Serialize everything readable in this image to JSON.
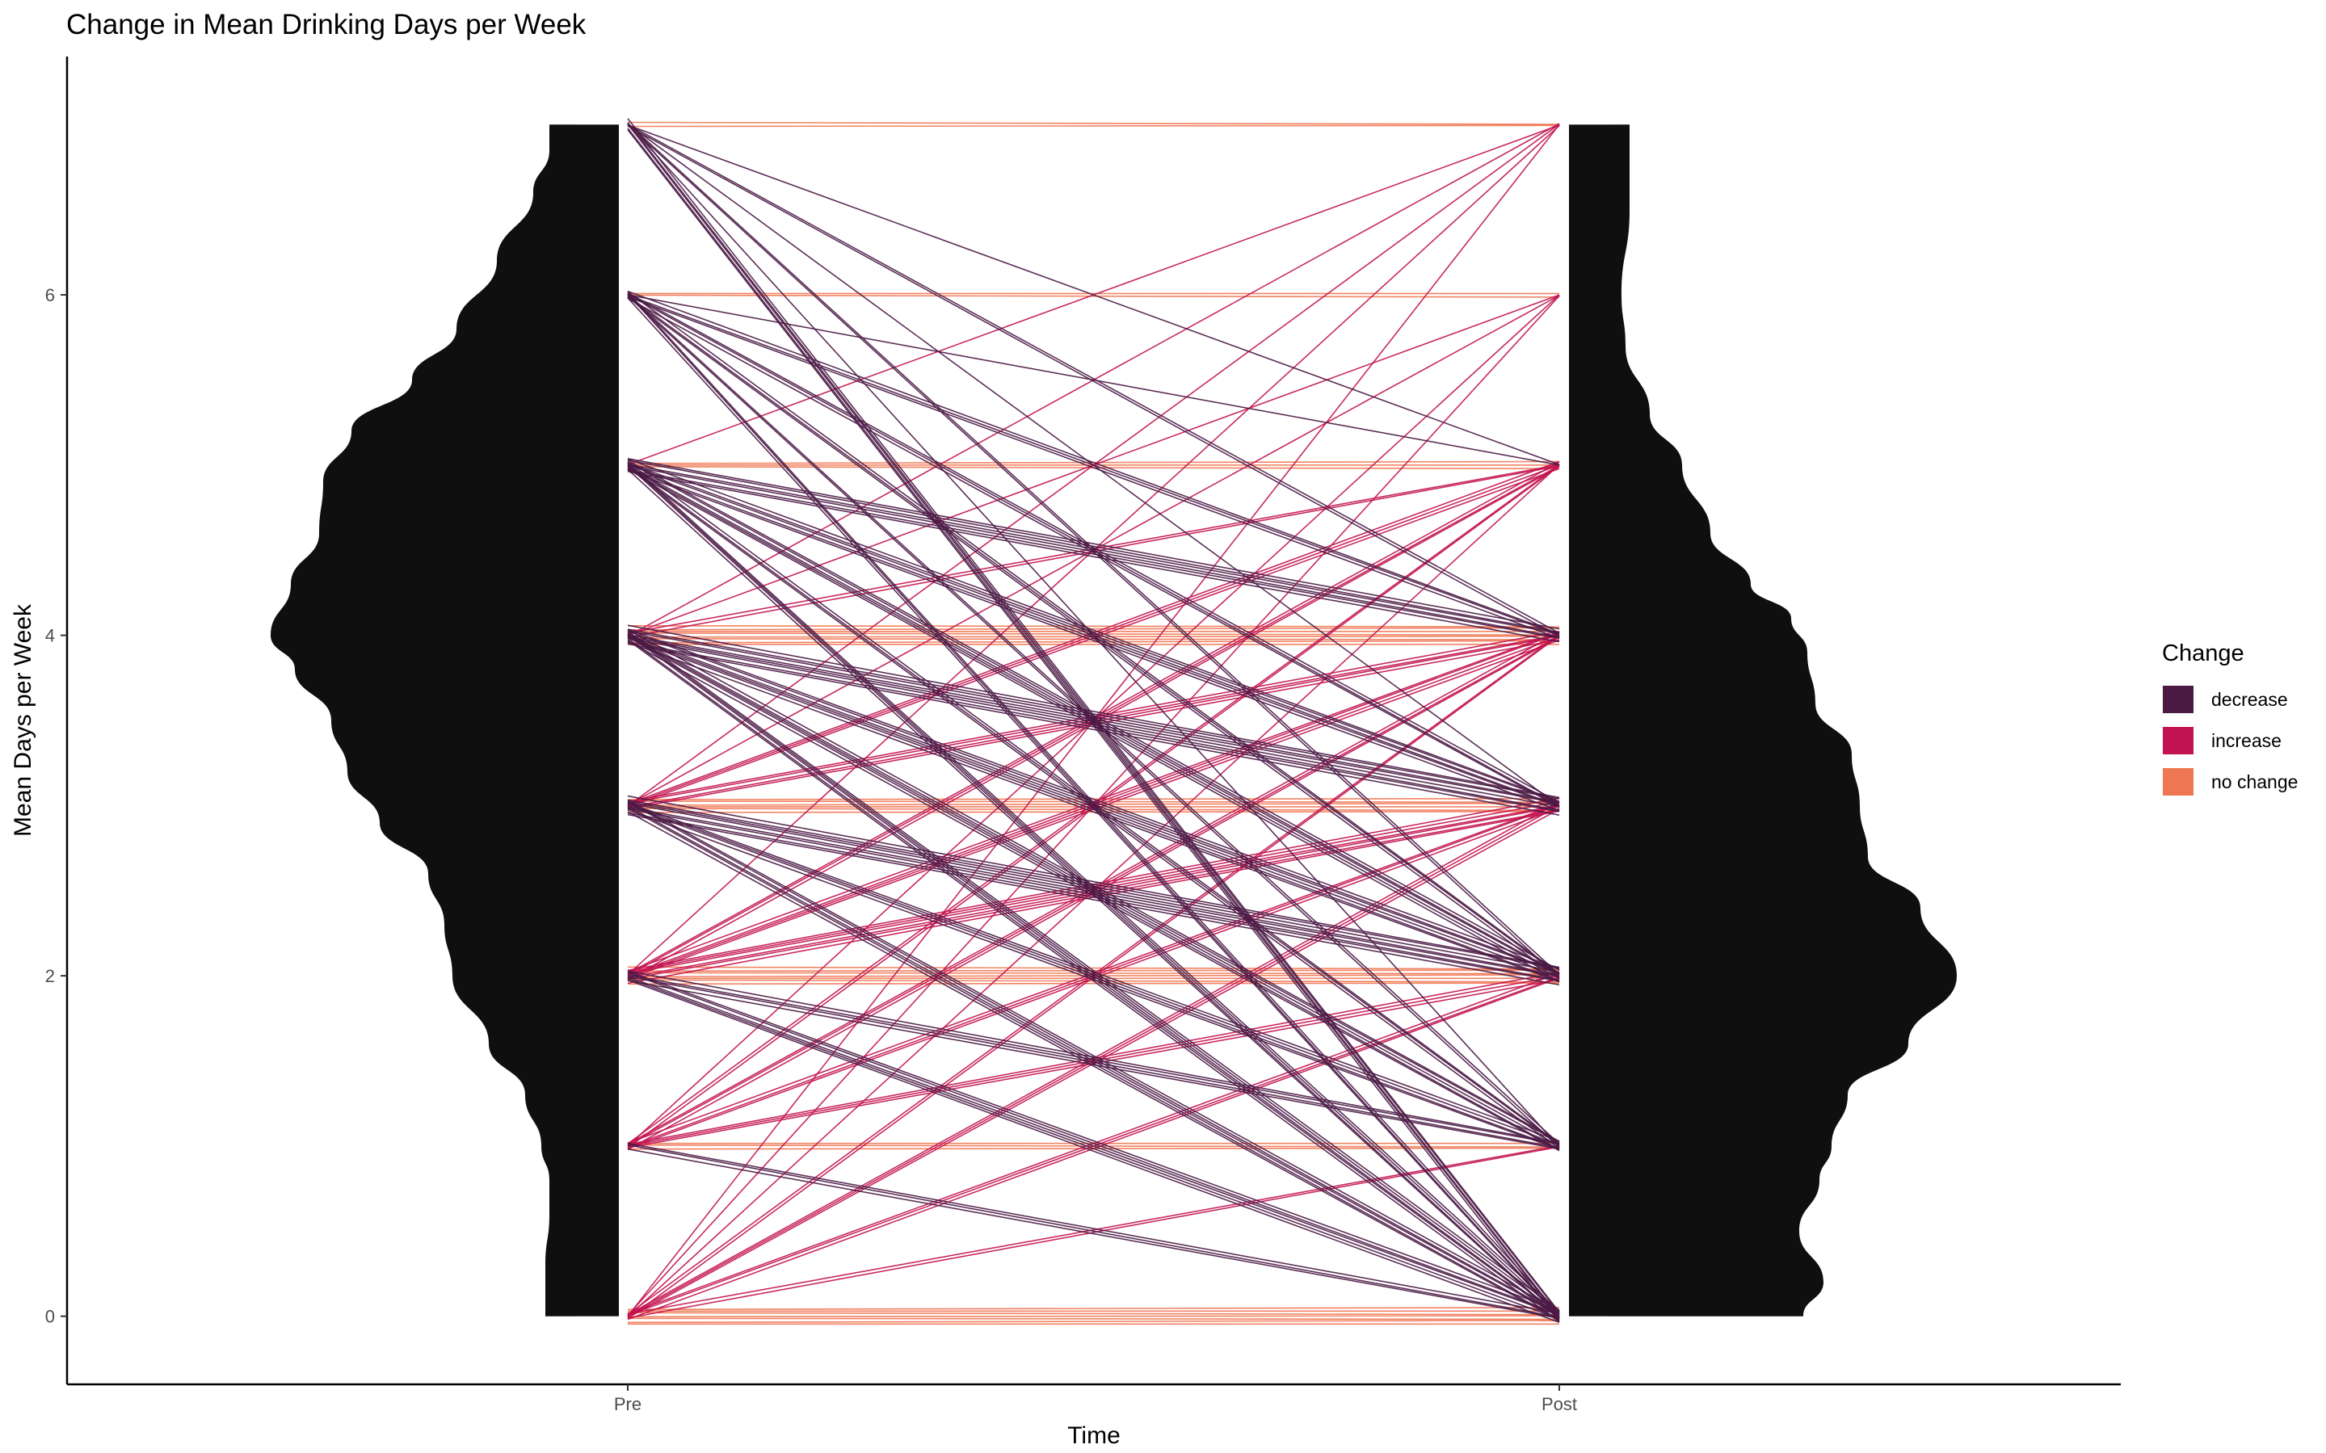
{
  "chart_data": {
    "type": "line",
    "title": "Change in Mean Drinking Days per Week",
    "xlabel": "Time",
    "ylabel": "Mean Days per Week",
    "categories": [
      "Pre",
      "Post"
    ],
    "ylim": [
      -0.4,
      7.4
    ],
    "yticks": [
      0,
      2,
      4,
      6
    ],
    "grid": false,
    "legend": {
      "title": "Change",
      "position": "right",
      "entries": [
        {
          "label": "decrease",
          "color": "#4a1a45"
        },
        {
          "label": "increase",
          "color": "#c2124f"
        },
        {
          "label": "no change",
          "color": "#ef7652"
        }
      ]
    },
    "density_fill_color": "#0f0f0f",
    "density_pre": [
      [
        0.0,
        0.08
      ],
      [
        0.3,
        0.08
      ],
      [
        0.6,
        0.07
      ],
      [
        0.8,
        0.07
      ],
      [
        1.0,
        0.09
      ],
      [
        1.3,
        0.13
      ],
      [
        1.6,
        0.22
      ],
      [
        2.0,
        0.31
      ],
      [
        2.3,
        0.33
      ],
      [
        2.6,
        0.37
      ],
      [
        2.9,
        0.49
      ],
      [
        3.2,
        0.57
      ],
      [
        3.5,
        0.61
      ],
      [
        3.8,
        0.7
      ],
      [
        4.0,
        0.76
      ],
      [
        4.3,
        0.71
      ],
      [
        4.6,
        0.64
      ],
      [
        4.9,
        0.63
      ],
      [
        5.2,
        0.56
      ],
      [
        5.5,
        0.41
      ],
      [
        5.8,
        0.3
      ],
      [
        6.2,
        0.2
      ],
      [
        6.6,
        0.11
      ],
      [
        6.85,
        0.07
      ],
      [
        7.0,
        0.07
      ]
    ],
    "density_post": [
      [
        0.0,
        0.48
      ],
      [
        0.2,
        0.53
      ],
      [
        0.5,
        0.47
      ],
      [
        0.8,
        0.52
      ],
      [
        1.0,
        0.55
      ],
      [
        1.3,
        0.59
      ],
      [
        1.6,
        0.74
      ],
      [
        2.0,
        0.86
      ],
      [
        2.4,
        0.77
      ],
      [
        2.7,
        0.64
      ],
      [
        3.0,
        0.62
      ],
      [
        3.3,
        0.6
      ],
      [
        3.6,
        0.51
      ],
      [
        3.9,
        0.49
      ],
      [
        4.1,
        0.45
      ],
      [
        4.3,
        0.35
      ],
      [
        4.6,
        0.25
      ],
      [
        5.0,
        0.18
      ],
      [
        5.3,
        0.1
      ],
      [
        5.7,
        0.04
      ],
      [
        6.0,
        0.03
      ],
      [
        6.5,
        0.05
      ],
      [
        7.0,
        0.05
      ]
    ],
    "series": [
      {
        "name": "no change",
        "color": "#ef7652",
        "segments": [
          [
            7,
            7,
            2
          ],
          [
            6,
            6,
            2
          ],
          [
            5,
            5,
            3
          ],
          [
            4,
            4,
            8
          ],
          [
            3,
            3,
            6
          ],
          [
            2,
            2,
            7
          ],
          [
            1,
            1,
            3
          ],
          [
            0,
            0,
            7
          ]
        ]
      },
      {
        "name": "decrease",
        "color": "#4a1a45",
        "segments": [
          [
            7,
            0,
            5
          ],
          [
            7,
            2,
            2
          ],
          [
            7,
            4,
            2
          ],
          [
            7,
            3,
            1
          ],
          [
            7,
            5,
            1
          ],
          [
            7,
            1,
            1
          ],
          [
            6,
            0,
            3
          ],
          [
            6,
            1,
            2
          ],
          [
            6,
            2,
            3
          ],
          [
            6,
            3,
            3
          ],
          [
            6,
            4,
            3
          ],
          [
            6,
            5,
            1
          ],
          [
            5,
            0,
            4
          ],
          [
            5,
            1,
            3
          ],
          [
            5,
            2,
            5
          ],
          [
            5,
            3,
            5
          ],
          [
            5,
            4,
            6
          ],
          [
            4,
            0,
            5
          ],
          [
            4,
            1,
            5
          ],
          [
            4,
            2,
            6
          ],
          [
            4,
            3,
            8
          ],
          [
            3,
            0,
            5
          ],
          [
            3,
            1,
            4
          ],
          [
            3,
            2,
            8
          ],
          [
            2,
            0,
            5
          ],
          [
            2,
            1,
            4
          ],
          [
            1,
            0,
            3
          ]
        ]
      },
      {
        "name": "increase",
        "color": "#c2124f",
        "segments": [
          [
            0,
            1,
            2
          ],
          [
            0,
            2,
            3
          ],
          [
            0,
            3,
            3
          ],
          [
            0,
            4,
            2
          ],
          [
            0,
            5,
            1
          ],
          [
            0,
            6,
            1
          ],
          [
            0,
            7,
            1
          ],
          [
            1,
            2,
            3
          ],
          [
            1,
            3,
            3
          ],
          [
            1,
            4,
            3
          ],
          [
            1,
            5,
            2
          ],
          [
            1,
            6,
            1
          ],
          [
            2,
            3,
            6
          ],
          [
            2,
            4,
            4
          ],
          [
            2,
            5,
            3
          ],
          [
            2,
            7,
            1
          ],
          [
            3,
            4,
            4
          ],
          [
            3,
            5,
            3
          ],
          [
            3,
            6,
            1
          ],
          [
            3,
            7,
            1
          ],
          [
            4,
            5,
            2
          ],
          [
            4,
            6,
            1
          ],
          [
            4,
            7,
            1
          ],
          [
            5,
            7,
            1
          ]
        ]
      }
    ]
  }
}
